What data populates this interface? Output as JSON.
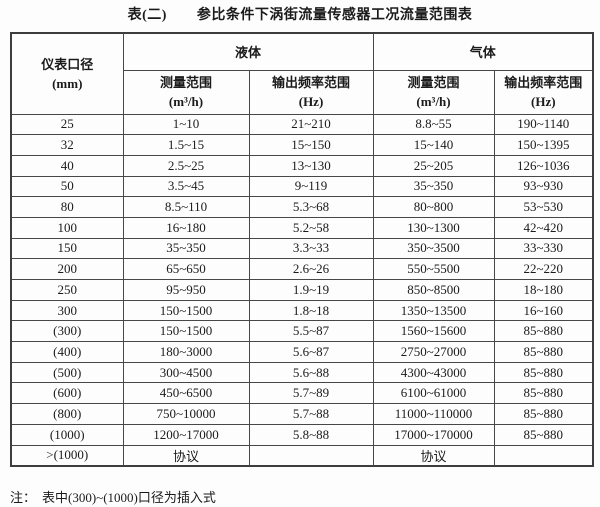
{
  "title": {
    "prefix": "表(二)",
    "text": "参比条件下涡街流量传感器工况流量范围表"
  },
  "table": {
    "diameter_header": {
      "label": "仪表口径",
      "unit": "(mm)"
    },
    "groups": [
      {
        "label": "液体"
      },
      {
        "label": "气体"
      }
    ],
    "subheaders": {
      "measure": {
        "label": "测量范围",
        "unit": "(m³/h)"
      },
      "freq": {
        "label": "输出频率范围",
        "unit": "(Hz)"
      }
    },
    "rows": [
      [
        "25",
        "1~10",
        "21~210",
        "8.8~55",
        "190~1140"
      ],
      [
        "32",
        "1.5~15",
        "15~150",
        "15~140",
        "150~1395"
      ],
      [
        "40",
        "2.5~25",
        "13~130",
        "25~205",
        "126~1036"
      ],
      [
        "50",
        "3.5~45",
        "9~119",
        "35~350",
        "93~930"
      ],
      [
        "80",
        "8.5~110",
        "5.3~68",
        "80~800",
        "53~530"
      ],
      [
        "100",
        "16~180",
        "5.2~58",
        "130~1300",
        "42~420"
      ],
      [
        "150",
        "35~350",
        "3.3~33",
        "350~3500",
        "33~330"
      ],
      [
        "200",
        "65~650",
        "2.6~26",
        "550~5500",
        "22~220"
      ],
      [
        "250",
        "95~950",
        "1.9~19",
        "850~8500",
        "18~180"
      ],
      [
        "300",
        "150~1500",
        "1.8~18",
        "1350~13500",
        "16~160"
      ],
      [
        "(300)",
        "150~1500",
        "5.5~87",
        "1560~15600",
        "85~880"
      ],
      [
        "(400)",
        "180~3000",
        "5.6~87",
        "2750~27000",
        "85~880"
      ],
      [
        "(500)",
        "300~4500",
        "5.6~88",
        "4300~43000",
        "85~880"
      ],
      [
        "(600)",
        "450~6500",
        "5.7~89",
        "6100~61000",
        "85~880"
      ],
      [
        "(800)",
        "750~10000",
        "5.7~88",
        "11000~110000",
        "85~880"
      ],
      [
        "(1000)",
        "1200~17000",
        "5.8~88",
        "17000~170000",
        "85~880"
      ],
      [
        ">(1000)",
        "协议",
        "",
        "协议",
        ""
      ]
    ]
  },
  "note": {
    "prefix": "注：",
    "text": "表中(300)~(1000)口径为插入式"
  }
}
